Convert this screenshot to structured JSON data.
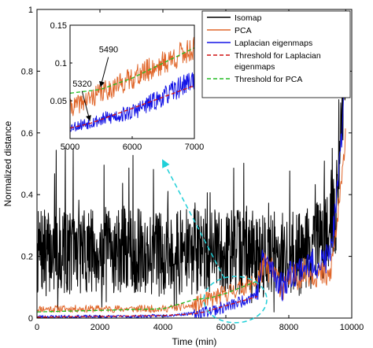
{
  "chart_data": {
    "type": "line",
    "xlabel": "Time (min)",
    "ylabel": "Normalized distance",
    "xlim": [
      0,
      10000
    ],
    "ylim": [
      0,
      1
    ],
    "xticks": [
      0,
      2000,
      4000,
      6000,
      8000,
      10000
    ],
    "yticks": [
      0,
      0.2,
      0.4,
      0.6,
      0.8,
      1
    ],
    "grid": false,
    "legend_position": "top-right",
    "series": [
      {
        "name": "Isomap",
        "color": "#000000",
        "style": "solid",
        "baseline_mean": 0.21,
        "noise_range": [
          0.02,
          0.55
        ],
        "x": [
          0,
          2000,
          4000,
          6000,
          7000,
          8000,
          9000,
          9500,
          9800
        ],
        "y": [
          0.21,
          0.22,
          0.21,
          0.22,
          0.21,
          0.2,
          0.24,
          0.35,
          0.82
        ]
      },
      {
        "name": "PCA",
        "color": "#E0662A",
        "style": "solid",
        "x": [
          0,
          1000,
          2000,
          3000,
          4000,
          5000,
          5490,
          6000,
          6500,
          7000,
          7200,
          7500,
          7800,
          8000,
          8500,
          9000,
          9300,
          9500,
          9700,
          9800
        ],
        "y": [
          0.03,
          0.03,
          0.03,
          0.03,
          0.03,
          0.04,
          0.06,
          0.08,
          0.1,
          0.12,
          0.17,
          0.15,
          0.1,
          0.12,
          0.15,
          0.14,
          0.13,
          0.28,
          0.45,
          0.62
        ]
      },
      {
        "name": "Laplacian eigenmaps",
        "color": "#1414E6",
        "style": "solid",
        "x": [
          0,
          1000,
          2000,
          3000,
          4000,
          5000,
          5500,
          6000,
          6500,
          7000,
          7200,
          7500,
          7800,
          8000,
          8500,
          9000,
          9300,
          9500,
          9700,
          9800
        ],
        "y": [
          0.005,
          0.005,
          0.005,
          0.005,
          0.008,
          0.015,
          0.025,
          0.035,
          0.055,
          0.08,
          0.2,
          0.15,
          0.1,
          0.14,
          0.17,
          0.18,
          0.2,
          0.35,
          0.6,
          1.0
        ]
      },
      {
        "name": "Threshold for Laplacian eigenmaps",
        "color": "#D01010",
        "style": "dashed",
        "x": [
          0,
          4000,
          5000,
          5320,
          6000,
          6500,
          7000
        ],
        "y": [
          0.003,
          0.008,
          0.014,
          0.02,
          0.04,
          0.055,
          0.07
        ]
      },
      {
        "name": "Threshold for PCA",
        "color": "#22BB22",
        "style": "dashed",
        "x": [
          0,
          4000,
          5000,
          5490,
          6000,
          6500,
          7000
        ],
        "y": [
          0.02,
          0.03,
          0.06,
          0.065,
          0.08,
          0.1,
          0.12
        ]
      }
    ],
    "inset": {
      "xlim": [
        5000,
        7000
      ],
      "ylim": [
        0,
        0.15
      ],
      "xticks": [
        5000,
        6000,
        7000
      ],
      "yticks": [
        0.05,
        0.1,
        0.15
      ],
      "ytick_labels": [
        "0.05",
        "0.1",
        "0.15"
      ],
      "annotations": [
        {
          "text": "5320",
          "x": 5320,
          "y": 0.02
        },
        {
          "text": "5490",
          "x": 5490,
          "y": 0.065
        }
      ],
      "zoom_source": {
        "x_center": 6300,
        "y_center": 0.06,
        "x_radius": 1000,
        "y_radius": 0.075
      }
    }
  }
}
